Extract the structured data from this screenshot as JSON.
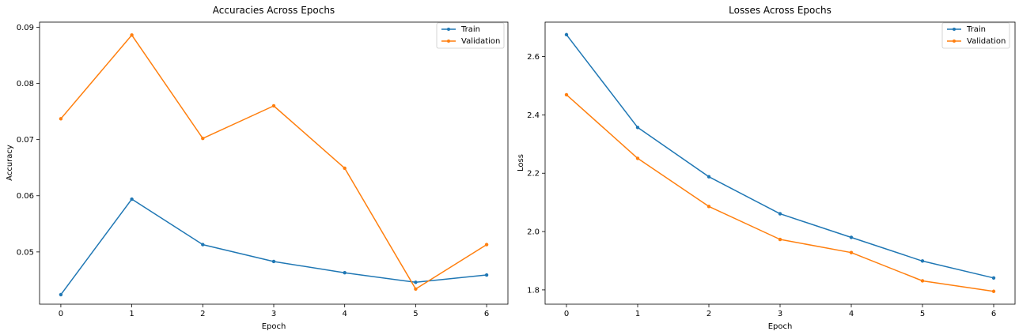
{
  "chart_data": [
    {
      "type": "line",
      "title": "Accuracies Across Epochs",
      "xlabel": "Epoch",
      "ylabel": "Accuracy",
      "x": [
        0,
        1,
        2,
        3,
        4,
        5,
        6
      ],
      "xticks": [
        "0",
        "1",
        "2",
        "3",
        "4",
        "5",
        "6"
      ],
      "xlim": [
        -0.3,
        6.3
      ],
      "ylim": [
        0.0407,
        0.0909
      ],
      "yticks": [
        "0.05",
        "0.06",
        "0.07",
        "0.08",
        "0.09"
      ],
      "ytick_values": [
        0.05,
        0.06,
        0.07,
        0.08,
        0.09
      ],
      "grid": false,
      "legend": "top-right",
      "series": [
        {
          "name": "Train",
          "color": "#1f77b4",
          "values": [
            0.0424,
            0.0594,
            0.0513,
            0.0483,
            0.0463,
            0.0446,
            0.0459
          ]
        },
        {
          "name": "Validation",
          "color": "#ff7f0e",
          "values": [
            0.0737,
            0.0886,
            0.0702,
            0.076,
            0.0649,
            0.0434,
            0.0513
          ]
        }
      ]
    },
    {
      "type": "line",
      "title": "Losses Across Epochs",
      "xlabel": "Epoch",
      "ylabel": "Loss",
      "x": [
        0,
        1,
        2,
        3,
        4,
        5,
        6
      ],
      "xticks": [
        "0",
        "1",
        "2",
        "3",
        "4",
        "5",
        "6"
      ],
      "xlim": [
        -0.3,
        6.3
      ],
      "ylim": [
        1.751,
        2.718
      ],
      "yticks": [
        "1.8",
        "2.0",
        "2.2",
        "2.4",
        "2.6"
      ],
      "ytick_values": [
        1.8,
        2.0,
        2.2,
        2.4,
        2.6
      ],
      "grid": false,
      "legend": "top-right",
      "series": [
        {
          "name": "Train",
          "color": "#1f77b4",
          "values": [
            2.675,
            2.357,
            2.188,
            2.061,
            1.98,
            1.899,
            1.841
          ]
        },
        {
          "name": "Validation",
          "color": "#ff7f0e",
          "values": [
            2.469,
            2.251,
            2.086,
            1.973,
            1.928,
            1.831,
            1.795
          ]
        }
      ]
    }
  ]
}
